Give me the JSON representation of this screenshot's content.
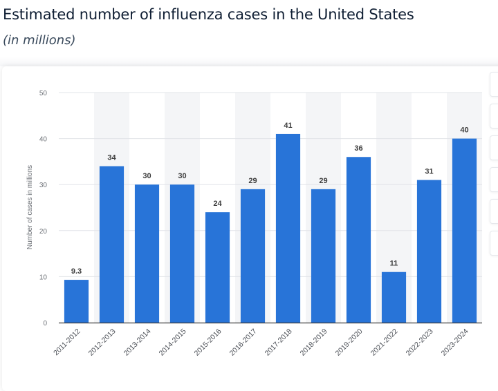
{
  "header": {
    "title": "Estimated number of influenza cases in the United States",
    "subtitle": "(in millions)"
  },
  "toolbar": {
    "buttons": [
      {
        "icon": "toolbar-button-1"
      },
      {
        "icon": "toolbar-button-2"
      },
      {
        "icon": "toolbar-button-3"
      },
      {
        "icon": "toolbar-button-4"
      },
      {
        "icon": "toolbar-button-5"
      },
      {
        "icon": "toolbar-button-6"
      }
    ]
  },
  "colors": {
    "bar": "#2874d8",
    "alt_column": "#f4f5f7",
    "grid": "#e2e4e8",
    "axis": "#3b3b3b"
  },
  "chart_data": {
    "type": "bar",
    "title": "Estimated number of influenza cases in the United States",
    "subtitle": "(in millions)",
    "xlabel": "",
    "ylabel": "Number of cases in millions",
    "categories": [
      "2011-2012",
      "2012-2013",
      "2013-2014",
      "2014-2015",
      "2015-2016",
      "2016-2017",
      "2017-2018",
      "2018-2019",
      "2019-2020",
      "2021-2022",
      "2022-2023",
      "2023-2024"
    ],
    "values": [
      9.3,
      34,
      30,
      30,
      24,
      29,
      41,
      29,
      36,
      11,
      31,
      40
    ],
    "value_labels": [
      "9.3",
      "34",
      "30",
      "30",
      "24",
      "29",
      "41",
      "29",
      "36",
      "11",
      "31",
      "40"
    ],
    "ylim": [
      0,
      50
    ],
    "yticks": [
      0,
      10,
      20,
      30,
      40,
      50
    ],
    "grid": true,
    "legend": "none"
  }
}
